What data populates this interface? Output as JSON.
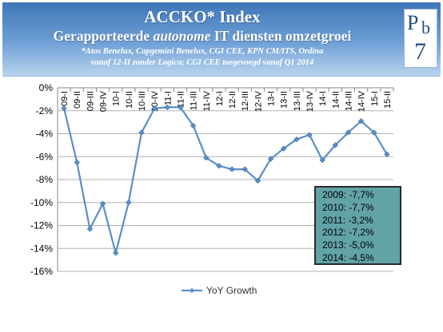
{
  "header": {
    "title": "ACCKO* Index",
    "subtitle_pre": "Gerapporteerde ",
    "subtitle_em": "autonome",
    "subtitle_post": " IT diensten omzetgroei",
    "note_line1": "*Atos Benelux, Capgemini Benelux, CGI CEE, KPN CM/ITS, Ordina",
    "note_line2": "vanaf 12-II zonder Logica; CGI CEE toegevoegd vanaf Q1 2014",
    "logo": {
      "l1": "P",
      "l2": "b",
      "l3": "7"
    }
  },
  "colors": {
    "series": "#5b8fc7",
    "gridline": "#b0b0b0",
    "axis": "#888888",
    "stats_box": "#62a3a6"
  },
  "stats_box": [
    "2009: -7,7%",
    "2010: -7,7%",
    "2011: -3,2%",
    "2012: -7,2%",
    "2013: -5,0%",
    "2014: -4,5%"
  ],
  "chart_data": {
    "type": "line",
    "categories": [
      "09-I",
      "09-II",
      "09-III",
      "09-IV",
      "10-I",
      "10-II",
      "10-III",
      "10-IV",
      "11-I",
      "11-II",
      "11-III",
      "11-IV",
      "12-I",
      "12-II",
      "12-III",
      "12-IV",
      "13-I",
      "13-II",
      "13-III",
      "13-IV",
      "14-I",
      "14-II",
      "14-III",
      "14-IV",
      "15-I",
      "15-II"
    ],
    "series": [
      {
        "name": "YoY Growth",
        "values": [
          -1.8,
          -6.5,
          -12.3,
          -10.1,
          -14.4,
          -10.0,
          -3.9,
          -1.8,
          -1.7,
          -1.7,
          -3.3,
          -6.1,
          -6.8,
          -7.1,
          -7.1,
          -8.1,
          -6.2,
          -5.3,
          -4.5,
          -4.1,
          -6.3,
          -5.0,
          -3.9,
          -2.9,
          -3.9,
          -5.8
        ]
      }
    ],
    "ylim": [
      -16,
      0
    ],
    "yticks": [
      "0%",
      "-2%",
      "-4%",
      "-6%",
      "-8%",
      "-10%",
      "-12%",
      "-14%",
      "-16%"
    ],
    "grid": true,
    "legend": "bottom"
  }
}
